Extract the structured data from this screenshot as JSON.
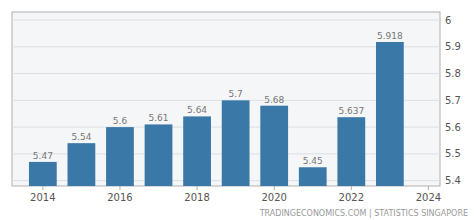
{
  "chart_data": {
    "type": "bar",
    "x": [
      2014,
      2015,
      2016,
      2017,
      2018,
      2019,
      2020,
      2021,
      2022,
      2023
    ],
    "values": [
      5.47,
      5.54,
      5.6,
      5.61,
      5.64,
      5.7,
      5.68,
      5.45,
      5.637,
      5.918
    ],
    "color": "#3a78a8",
    "data_labels": true,
    "xlim": [
      2013.2,
      2024.3
    ],
    "xticks": [
      2014,
      2016,
      2018,
      2020,
      2022,
      2024
    ],
    "ylim": [
      5.38,
      6.03
    ],
    "yticks": [
      5.4,
      5.5,
      5.6,
      5.7,
      5.8,
      5.9,
      6
    ],
    "grid": true,
    "annotations": [
      "TRADINGECONOMICS.COM  |  STATISTICS SINGAPORE"
    ]
  }
}
